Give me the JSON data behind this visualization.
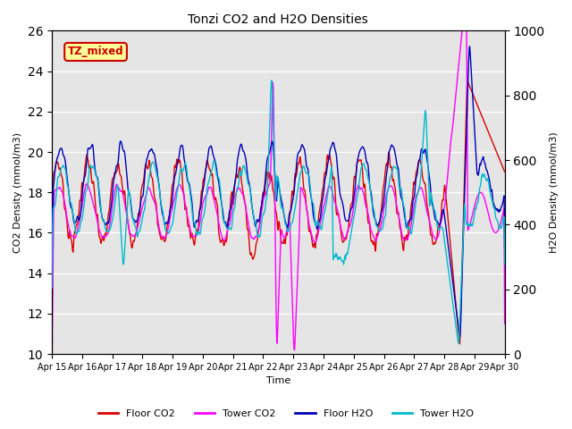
{
  "title": "Tonzi CO2 and H2O Densities",
  "xlabel": "Time",
  "ylabel_left": "CO2 Density (mmol/m3)",
  "ylabel_right": "H2O Density (mmol/m3)",
  "ylim_left": [
    10,
    26
  ],
  "ylim_right": [
    0,
    1000
  ],
  "annotation_text": "TZ_mixed",
  "annotation_color": "#cc0000",
  "annotation_bg": "#ffff99",
  "bg_color": "#e5e5e5",
  "colors": {
    "floor_co2": "#dd0000",
    "tower_co2": "#ff00ff",
    "floor_h2o": "#0000bb",
    "tower_h2o": "#00bbcc"
  },
  "legend_labels": [
    "Floor CO2",
    "Tower CO2",
    "Floor H2O",
    "Tower H2O"
  ],
  "x_tick_labels": [
    "Apr 15",
    "Apr 16",
    "Apr 17",
    "Apr 18",
    "Apr 19",
    "Apr 20",
    "Apr 21",
    "Apr 22",
    "Apr 23",
    "Apr 24",
    "Apr 25",
    "Apr 26",
    "Apr 27",
    "Apr 28",
    "Apr 29",
    "Apr 30"
  ],
  "n_points": 960,
  "figsize": [
    6.4,
    4.8
  ],
  "dpi": 100
}
